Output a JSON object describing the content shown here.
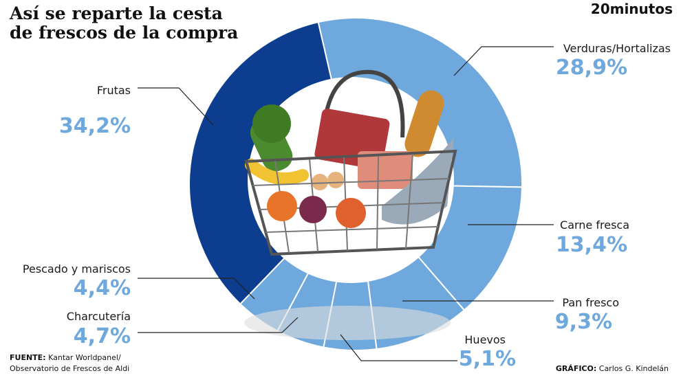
{
  "chart_data": {
    "type": "pie",
    "title": [
      "Así se reparte la cesta",
      "de frescos de la compra"
    ],
    "logo": "20minutos",
    "categories": [
      "Verduras/Hortalizas",
      "Carne fresca",
      "Pan fresco",
      "Huevos",
      "Charcutería",
      "Pescado y mariscos",
      "Frutas"
    ],
    "values": [
      28.9,
      13.4,
      9.3,
      5.1,
      4.7,
      4.4,
      34.2
    ],
    "value_labels": [
      "28,9%",
      "13,4%",
      "9,3%",
      "5,1%",
      "4,7%",
      "4,4%",
      "34,2%"
    ],
    "colors": [
      "#6fa8dc",
      "#6fa8dc",
      "#6fa8dc",
      "#6fa8dc",
      "#6fa8dc",
      "#6fa8dc",
      "#0d3d8f"
    ],
    "source": {
      "label": "FUENTE:",
      "text": [
        "Kantar Worldpanel/",
        "Observatorio de Frescos de Aldi"
      ]
    },
    "credit": {
      "label": "GRÁFICO:",
      "text": "Carlos G. Kindelán"
    }
  }
}
